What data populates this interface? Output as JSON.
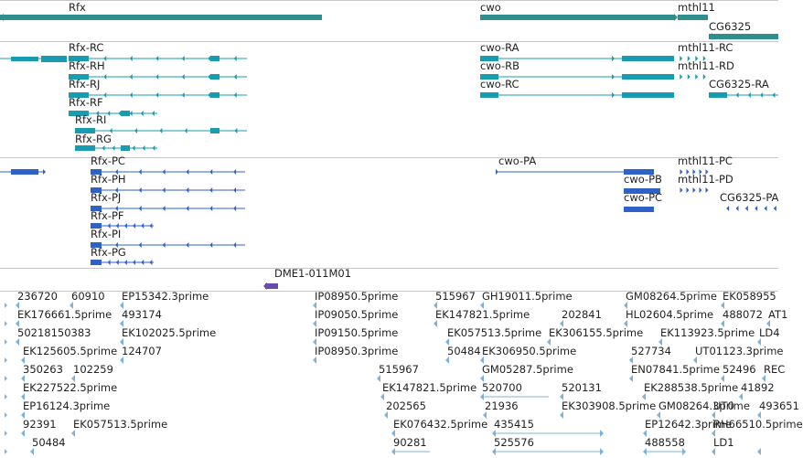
{
  "colors": {
    "gene": "#2f8f8f",
    "transcript": "#1a9cb0",
    "cds": "#2f62c8",
    "clone": "#6a4bb0",
    "est": "#7fb2d8",
    "divider": "#c8c8c8"
  },
  "tracks": {
    "genes": [
      {
        "label": "Rfx"
      },
      {
        "label": "cwo"
      },
      {
        "label": "mthl11"
      },
      {
        "label": "CG6325"
      }
    ],
    "transcripts": [
      {
        "label": "Rfx-RC"
      },
      {
        "label": "Rfx-RH"
      },
      {
        "label": "Rfx-RJ"
      },
      {
        "label": "Rfx-RF"
      },
      {
        "label": "Rfx-RI"
      },
      {
        "label": "Rfx-RG"
      },
      {
        "label": "cwo-RA"
      },
      {
        "label": "cwo-RB"
      },
      {
        "label": "cwo-RC"
      },
      {
        "label": "mthl11-RC"
      },
      {
        "label": "mthl11-RD"
      },
      {
        "label": "CG6325-RA"
      }
    ],
    "cds": [
      {
        "label": "Rfx-PC"
      },
      {
        "label": "Rfx-PH"
      },
      {
        "label": "Rfx-PJ"
      },
      {
        "label": "Rfx-PF"
      },
      {
        "label": "Rfx-PI"
      },
      {
        "label": "Rfx-PG"
      },
      {
        "label": "cwo-PA"
      },
      {
        "label": "cwo-PB"
      },
      {
        "label": "cwo-PC"
      },
      {
        "label": "mthl11-PC"
      },
      {
        "label": "mthl11-PD"
      },
      {
        "label": "CG6325-PA"
      }
    ],
    "clones": [
      {
        "label": "DME1-011M01"
      }
    ],
    "ests": [
      {
        "label": "236720"
      },
      {
        "label": "60910"
      },
      {
        "label": "EP15342.3prime"
      },
      {
        "label": "IP08950.5prime"
      },
      {
        "label": "515967"
      },
      {
        "label": "GH19011.5prime"
      },
      {
        "label": "GM08264.5prime"
      },
      {
        "label": "EK058955"
      },
      {
        "label": "EK176661.5prime"
      },
      {
        "label": "493174"
      },
      {
        "label": "IP09050.5prime"
      },
      {
        "label": "EK147821.5prime"
      },
      {
        "label": "202841"
      },
      {
        "label": "HL02604.5prime"
      },
      {
        "label": "488072"
      },
      {
        "label": "AT1"
      },
      {
        "label": "50218150383"
      },
      {
        "label": "EK102025.5prime"
      },
      {
        "label": "IP09150.5prime"
      },
      {
        "label": "EK057513.5prime"
      },
      {
        "label": "EK306155.5prime"
      },
      {
        "label": "EK113923.5prime"
      },
      {
        "label": "LD4"
      },
      {
        "label": "EK125605.5prime"
      },
      {
        "label": "124707"
      },
      {
        "label": "IP08950.3prime"
      },
      {
        "label": "50484"
      },
      {
        "label": "EK306950.5prime"
      },
      {
        "label": "527734"
      },
      {
        "label": "UT01123.3prime"
      },
      {
        "label": "350263"
      },
      {
        "label": "102259"
      },
      {
        "label": "515967"
      },
      {
        "label": "GM05287.5prime"
      },
      {
        "label": "EN07841.5prime"
      },
      {
        "label": "52496"
      },
      {
        "label": "REC"
      },
      {
        "label": "EK227522.5prime"
      },
      {
        "label": "EK147821.5prime"
      },
      {
        "label": "520700"
      },
      {
        "label": "520131"
      },
      {
        "label": "EK288538.5prime"
      },
      {
        "label": "41892"
      },
      {
        "label": "EP16124.3prime"
      },
      {
        "label": "202565"
      },
      {
        "label": "21936"
      },
      {
        "label": "EK303908.5prime"
      },
      {
        "label": "GM08264.3prime"
      },
      {
        "label": "UT0"
      },
      {
        "label": "493651"
      },
      {
        "label": "92391"
      },
      {
        "label": "EK057513.5prime"
      },
      {
        "label": "EK076432.5prime"
      },
      {
        "label": "435415"
      },
      {
        "label": "EP12642.3prime"
      },
      {
        "label": "RH66510.5prime"
      },
      {
        "label": "50484"
      },
      {
        "label": "90281"
      },
      {
        "label": "525576"
      },
      {
        "label": "488558"
      },
      {
        "label": "LD1"
      }
    ]
  }
}
